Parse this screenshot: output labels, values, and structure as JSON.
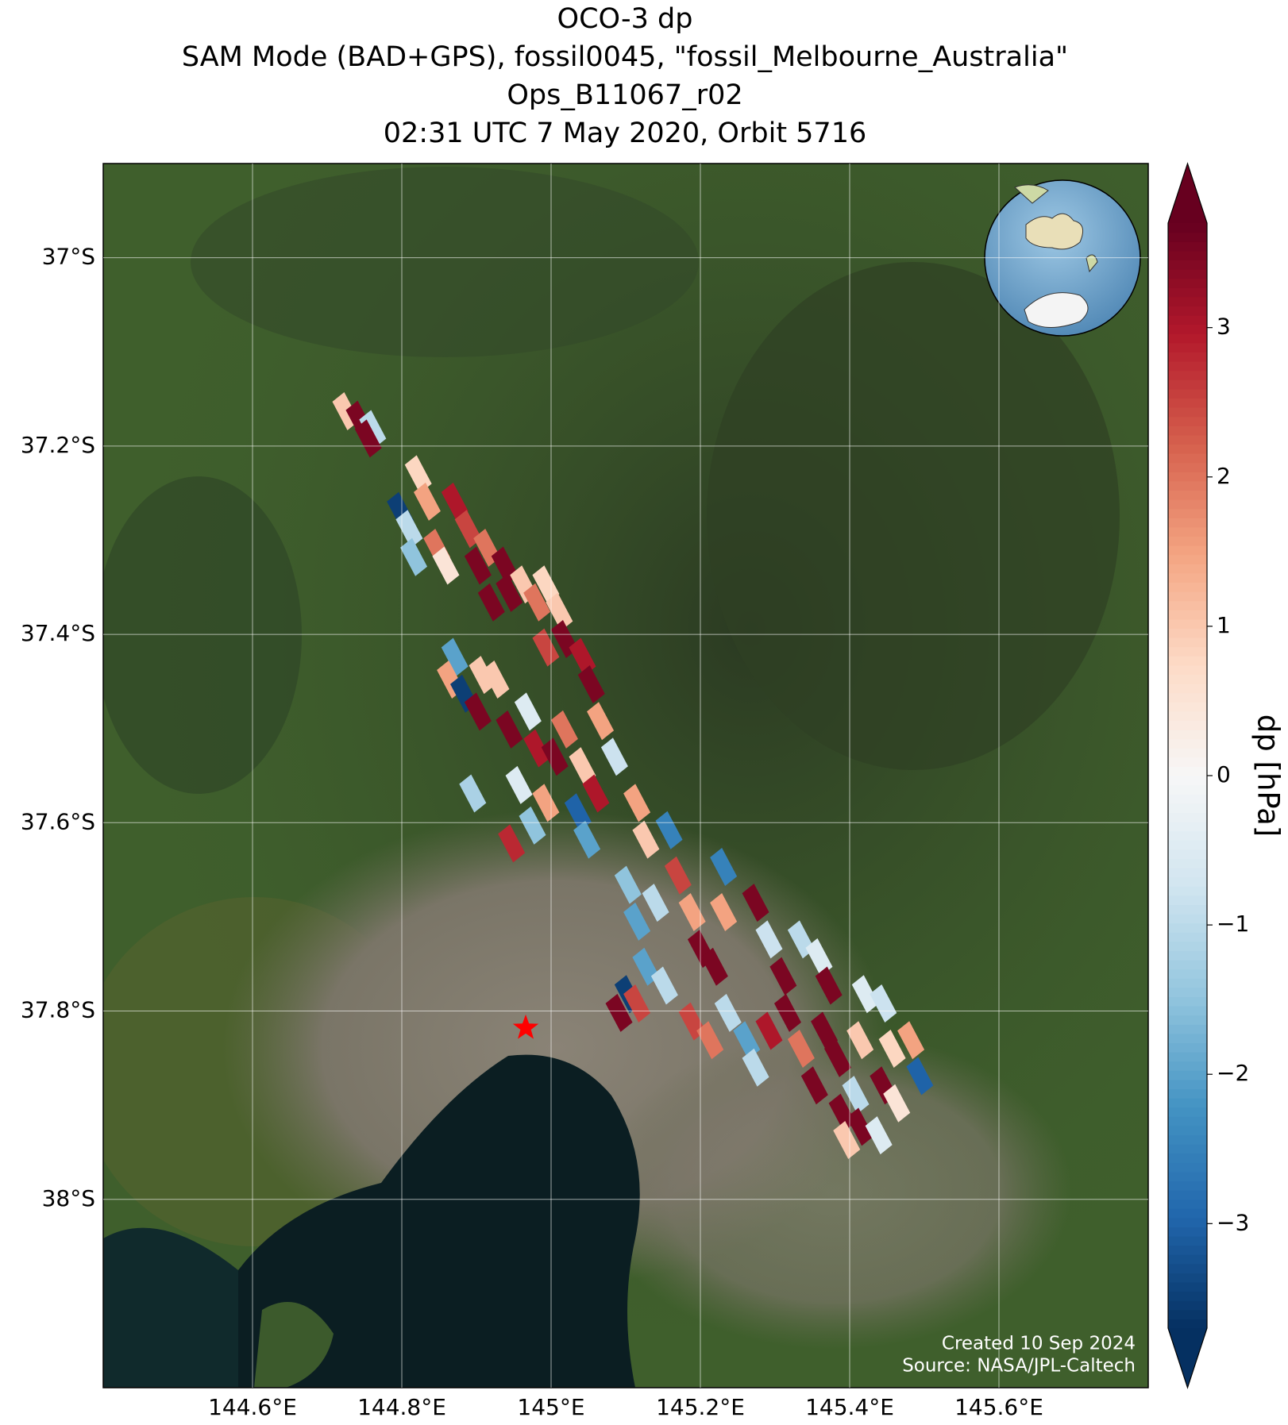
{
  "map": {
    "title": [
      "OCO-3 dp",
      "SAM Mode (BAD+GPS), fossil0045, \"fossil_Melbourne_Australia\"",
      "Ops_B11067_r02",
      "02:31 UTC 7 May 2020, Orbit 5716"
    ],
    "xlim": [
      144.4,
      145.8
    ],
    "ylim": [
      -38.2,
      -36.9
    ],
    "xticks": [
      {
        "value": 144.6,
        "label": "144.6°E"
      },
      {
        "value": 144.8,
        "label": "144.8°E"
      },
      {
        "value": 145.0,
        "label": "145°E"
      },
      {
        "value": 145.2,
        "label": "145.2°E"
      },
      {
        "value": 145.4,
        "label": "145.4°E"
      },
      {
        "value": 145.6,
        "label": "145.6°E"
      }
    ],
    "yticks": [
      {
        "value": -37.0,
        "label": "37°S"
      },
      {
        "value": -37.2,
        "label": "37.2°S"
      },
      {
        "value": -37.4,
        "label": "37.4°S"
      },
      {
        "value": -37.6,
        "label": "37.6°S"
      },
      {
        "value": -37.8,
        "label": "37.8°S"
      },
      {
        "value": -38.0,
        "label": "38°S"
      }
    ],
    "grid": true,
    "site": {
      "lon": 144.966,
      "lat": -37.818,
      "color": "#ff0000"
    },
    "colormap": "RdBu_r",
    "colorbar": {
      "label": "dp [hPa]",
      "clim": [
        -3.7,
        3.7
      ],
      "ticks": [
        {
          "value": -3,
          "label": "−3"
        },
        {
          "value": -2,
          "label": "−2"
        },
        {
          "value": -1,
          "label": "−1"
        },
        0,
        1,
        2,
        3
      ]
    },
    "soundings": {
      "lon": [
        144.725,
        144.743,
        144.761,
        144.755,
        144.798,
        144.81,
        144.822,
        144.834,
        144.847,
        144.816,
        144.859,
        144.871,
        144.889,
        144.902,
        144.92,
        144.914,
        144.938,
        144.944,
        144.963,
        144.981,
        144.993,
        145.011,
        145.018,
        144.993,
        145.042,
        145.054,
        145.066,
        145.085,
        144.871,
        144.865,
        144.883,
        144.908,
        144.926,
        144.902,
        144.944,
        144.969,
        144.981,
        145.005,
        145.018,
        145.042,
        145.06,
        144.957,
        144.993,
        145.036,
        145.048,
        144.895,
        144.947,
        144.975,
        145.115,
        145.127,
        145.158,
        145.103,
        145.115,
        145.14,
        145.17,
        145.189,
        145.201,
        145.231,
        145.231,
        145.127,
        145.103,
        145.152,
        145.091,
        145.115,
        145.219,
        145.274,
        145.292,
        145.311,
        145.335,
        145.359,
        145.372,
        145.189,
        145.213,
        145.237,
        145.262,
        145.274,
        145.292,
        145.317,
        145.335,
        145.353,
        145.366,
        145.384,
        145.421,
        145.445,
        145.414,
        145.457,
        145.482,
        145.494,
        145.445,
        145.463,
        145.408,
        145.39,
        145.414,
        145.396,
        145.439
      ],
      "lat": [
        -37.163,
        -37.172,
        -37.182,
        -37.192,
        -37.269,
        -37.288,
        -37.23,
        -37.259,
        -37.308,
        -37.318,
        -37.327,
        -37.259,
        -37.288,
        -37.327,
        -37.366,
        -37.308,
        -37.327,
        -37.356,
        -37.347,
        -37.366,
        -37.347,
        -37.376,
        -37.405,
        -37.414,
        -37.424,
        -37.453,
        -37.492,
        -37.53,
        -37.424,
        -37.448,
        -37.463,
        -37.443,
        -37.448,
        -37.482,
        -37.501,
        -37.482,
        -37.521,
        -37.53,
        -37.501,
        -37.54,
        -37.569,
        -37.56,
        -37.579,
        -37.589,
        -37.618,
        -37.569,
        -37.622,
        -37.603,
        -37.579,
        -37.618,
        -37.608,
        -37.666,
        -37.705,
        -37.685,
        -37.656,
        -37.695,
        -37.734,
        -37.647,
        -37.695,
        -37.753,
        -37.782,
        -37.773,
        -37.802,
        -37.792,
        -37.753,
        -37.685,
        -37.724,
        -37.763,
        -37.724,
        -37.743,
        -37.773,
        -37.811,
        -37.831,
        -37.802,
        -37.831,
        -37.86,
        -37.821,
        -37.802,
        -37.84,
        -37.879,
        -37.821,
        -37.85,
        -37.782,
        -37.792,
        -37.831,
        -37.84,
        -37.831,
        -37.869,
        -37.879,
        -37.898,
        -37.889,
        -37.908,
        -37.923,
        -37.937,
        -37.932
      ],
      "dp": [
        1,
        3.5,
        -1,
        3.5,
        -3.5,
        -1,
        0.8,
        1.5,
        2,
        -1.5,
        0.5,
        3,
        2.5,
        3.5,
        3.5,
        2,
        3.5,
        3.5,
        1,
        2,
        0.8,
        1,
        3.5,
        2.5,
        3,
        3.5,
        1.5,
        -0.8,
        -2,
        1.5,
        -3.5,
        1,
        1,
        3.5,
        3.5,
        -0.5,
        3,
        3.5,
        2,
        1,
        3,
        -0.5,
        1.5,
        -3,
        -2,
        -1.2,
        2.8,
        -1.5,
        1.5,
        1,
        -2.5,
        -1.5,
        -2,
        -1,
        2.5,
        1.5,
        3.5,
        -2.5,
        1.5,
        -2,
        -3.5,
        -1,
        3.5,
        2.5,
        3.5,
        3.5,
        -0.8,
        3.5,
        -1,
        -0.5,
        3.5,
        2.5,
        2,
        -1,
        -2,
        -1,
        3,
        3.5,
        2,
        3.5,
        3.5,
        3.5,
        -0.5,
        -0.8,
        1,
        0.8,
        1.5,
        -3,
        3.5,
        0.5,
        -1,
        3.5,
        3.5,
        1,
        -0.5
      ]
    },
    "footer": [
      "Created 10 Sep 2024",
      "Source: NASA/JPL-Caltech"
    ]
  }
}
